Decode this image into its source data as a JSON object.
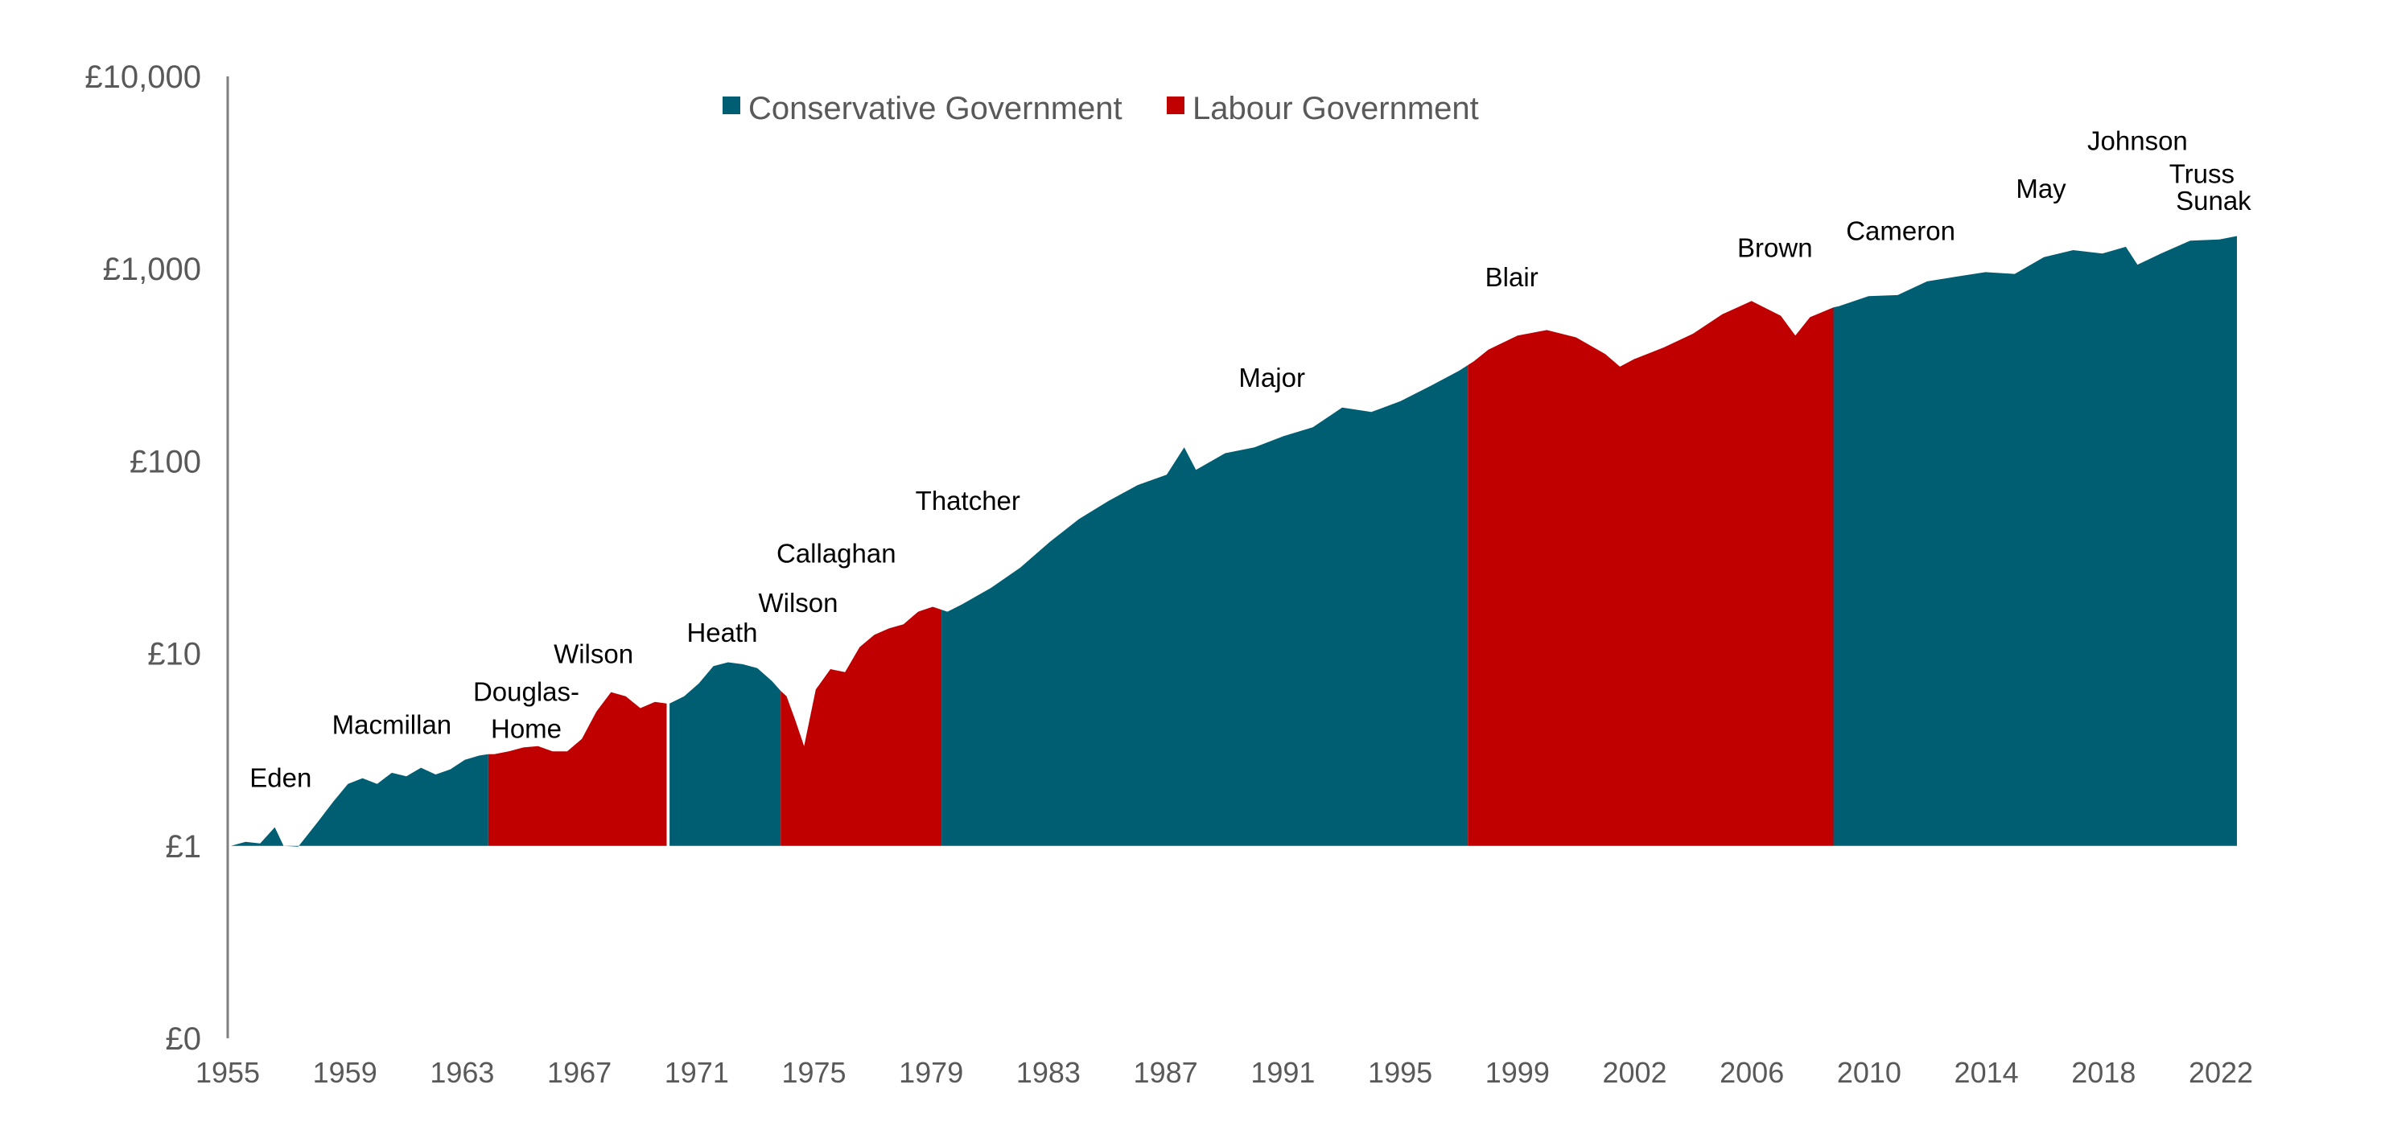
{
  "chart_data": {
    "type": "area",
    "title": "",
    "xlabel": "",
    "ylabel": "",
    "y_scale": "log",
    "ylim": [
      0.1,
      10000
    ],
    "y_tick_values": [
      0.1,
      1,
      10,
      100,
      1000,
      10000
    ],
    "y_tick_labels": [
      "£0",
      "£1",
      "£10",
      "£100",
      "£1,000",
      "£10,000"
    ],
    "xlim": [
      1955.0,
      2023.6
    ],
    "x_tick_labels": [
      "1955",
      "1959",
      "1963",
      "1967",
      "1971",
      "1975",
      "1979",
      "1983",
      "1987",
      "1991",
      "1995",
      "1999",
      "2002",
      "2006",
      "2010",
      "2014",
      "2018",
      "2022"
    ],
    "legend": [
      {
        "name": "Conservative Government",
        "color": "#005E73"
      },
      {
        "name": "Labour Government",
        "color": "#C00000"
      }
    ],
    "legend_position": "top-center",
    "colors": {
      "Conservative": "#005E73",
      "Labour": "#C00000"
    },
    "series_points": [
      [
        1955.0,
        1.0
      ],
      [
        1955.5,
        1.05
      ],
      [
        1956.0,
        1.03
      ],
      [
        1956.5,
        1.25
      ],
      [
        1956.8,
        1.0
      ],
      [
        1957.3,
        0.99
      ],
      [
        1958.0,
        1.35
      ],
      [
        1958.5,
        1.7
      ],
      [
        1959.0,
        2.1
      ],
      [
        1959.5,
        2.25
      ],
      [
        1960.0,
        2.1
      ],
      [
        1960.5,
        2.4
      ],
      [
        1961.0,
        2.3
      ],
      [
        1961.5,
        2.55
      ],
      [
        1962.0,
        2.35
      ],
      [
        1962.5,
        2.5
      ],
      [
        1963.0,
        2.8
      ],
      [
        1963.5,
        2.95
      ],
      [
        1963.8,
        3.0
      ],
      [
        1964.0,
        3.0
      ],
      [
        1964.5,
        3.1
      ],
      [
        1965.0,
        3.25
      ],
      [
        1965.5,
        3.3
      ],
      [
        1966.0,
        3.1
      ],
      [
        1966.5,
        3.1
      ],
      [
        1967.0,
        3.6
      ],
      [
        1967.5,
        5.0
      ],
      [
        1968.0,
        6.3
      ],
      [
        1968.5,
        6.0
      ],
      [
        1969.0,
        5.2
      ],
      [
        1969.5,
        5.6
      ],
      [
        1969.9,
        5.5
      ],
      [
        1970.0,
        5.5
      ],
      [
        1970.5,
        6.0
      ],
      [
        1971.0,
        7.0
      ],
      [
        1971.5,
        8.6
      ],
      [
        1972.0,
        9.0
      ],
      [
        1972.5,
        8.8
      ],
      [
        1973.0,
        8.4
      ],
      [
        1973.5,
        7.2
      ],
      [
        1973.8,
        6.4
      ],
      [
        1974.0,
        6.0
      ],
      [
        1974.3,
        4.5
      ],
      [
        1974.6,
        3.3
      ],
      [
        1975.0,
        6.5
      ],
      [
        1975.5,
        8.3
      ],
      [
        1976.0,
        8.0
      ],
      [
        1976.5,
        10.8
      ],
      [
        1977.0,
        12.5
      ],
      [
        1977.5,
        13.5
      ],
      [
        1978.0,
        14.2
      ],
      [
        1978.5,
        16.5
      ],
      [
        1979.0,
        17.5
      ],
      [
        1979.5,
        16.5
      ],
      [
        1980.0,
        18.0
      ],
      [
        1981.0,
        22.0
      ],
      [
        1982.0,
        28.0
      ],
      [
        1983.0,
        38.0
      ],
      [
        1984.0,
        50.0
      ],
      [
        1985.0,
        62.0
      ],
      [
        1986.0,
        75.0
      ],
      [
        1987.0,
        85.0
      ],
      [
        1987.6,
        118.0
      ],
      [
        1988.0,
        90.0
      ],
      [
        1989.0,
        110.0
      ],
      [
        1990.0,
        118.0
      ],
      [
        1991.0,
        135.0
      ],
      [
        1992.0,
        150.0
      ],
      [
        1993.0,
        190.0
      ],
      [
        1994.0,
        180.0
      ],
      [
        1995.0,
        205.0
      ],
      [
        1996.0,
        245.0
      ],
      [
        1997.0,
        295.0
      ],
      [
        1997.5,
        330.0
      ],
      [
        1998.0,
        380.0
      ],
      [
        1999.0,
        450.0
      ],
      [
        2000.0,
        480.0
      ],
      [
        2001.0,
        440.0
      ],
      [
        2002.0,
        360.0
      ],
      [
        2002.5,
        310.0
      ],
      [
        2003.0,
        340.0
      ],
      [
        2004.0,
        390.0
      ],
      [
        2005.0,
        460.0
      ],
      [
        2006.0,
        580.0
      ],
      [
        2007.0,
        680.0
      ],
      [
        2008.0,
        570.0
      ],
      [
        2008.5,
        450.0
      ],
      [
        2009.0,
        560.0
      ],
      [
        2009.8,
        630.0
      ],
      [
        2010.0,
        640.0
      ],
      [
        2011.0,
        720.0
      ],
      [
        2012.0,
        730.0
      ],
      [
        2013.0,
        860.0
      ],
      [
        2014.0,
        910.0
      ],
      [
        2015.0,
        960.0
      ],
      [
        2016.0,
        940.0
      ],
      [
        2017.0,
        1150.0
      ],
      [
        2018.0,
        1250.0
      ],
      [
        2019.0,
        1200.0
      ],
      [
        2019.8,
        1300.0
      ],
      [
        2020.2,
        1050.0
      ],
      [
        2021.0,
        1200.0
      ],
      [
        2022.0,
        1400.0
      ],
      [
        2023.0,
        1420.0
      ],
      [
        2023.6,
        1480.0
      ]
    ],
    "periods": [
      {
        "party": "Conservative",
        "start": 1955.0,
        "end": 1963.8
      },
      {
        "party": "Labour",
        "start": 1963.8,
        "end": 1969.9
      },
      {
        "party": "Conservative",
        "start": 1970.0,
        "end": 1973.8
      },
      {
        "party": "Labour",
        "start": 1973.8,
        "end": 1979.3
      },
      {
        "party": "Conservative",
        "start": 1979.3,
        "end": 1997.3
      },
      {
        "party": "Labour",
        "start": 1997.3,
        "end": 2009.8
      },
      {
        "party": "Conservative",
        "start": 2009.8,
        "end": 2023.6
      }
    ],
    "pm_labels": [
      {
        "text": "Eden",
        "x": 1956.7,
        "y": 2.25
      },
      {
        "text": "Macmillan",
        "x": 1960.5,
        "y": 4.25
      },
      {
        "text": "Douglas-",
        "x": 1965.1,
        "y": 6.3
      },
      {
        "text": "Home",
        "x": 1965.1,
        "y": 4.05
      },
      {
        "text": "Wilson",
        "x": 1967.4,
        "y": 9.9
      },
      {
        "text": "Heath",
        "x": 1971.8,
        "y": 12.8
      },
      {
        "text": "Wilson",
        "x": 1974.4,
        "y": 18.3
      },
      {
        "text": "Callaghan",
        "x": 1975.7,
        "y": 33.0
      },
      {
        "text": "Thatcher",
        "x": 1980.2,
        "y": 62.0
      },
      {
        "text": "Major",
        "x": 1990.6,
        "y": 270.0
      },
      {
        "text": "Blair",
        "x": 1998.8,
        "y": 900.0
      },
      {
        "text": "Brown",
        "x": 2007.8,
        "y": 1280.0
      },
      {
        "text": "Cameron",
        "x": 2012.1,
        "y": 1570.0
      },
      {
        "text": "May",
        "x": 2016.9,
        "y": 2600.0
      },
      {
        "text": "Johnson",
        "x": 2020.2,
        "y": 4600.0
      },
      {
        "text": "Truss",
        "x": 2022.4,
        "y": 3100.0
      },
      {
        "text": "Sunak",
        "x": 2022.8,
        "y": 2250.0
      }
    ]
  }
}
